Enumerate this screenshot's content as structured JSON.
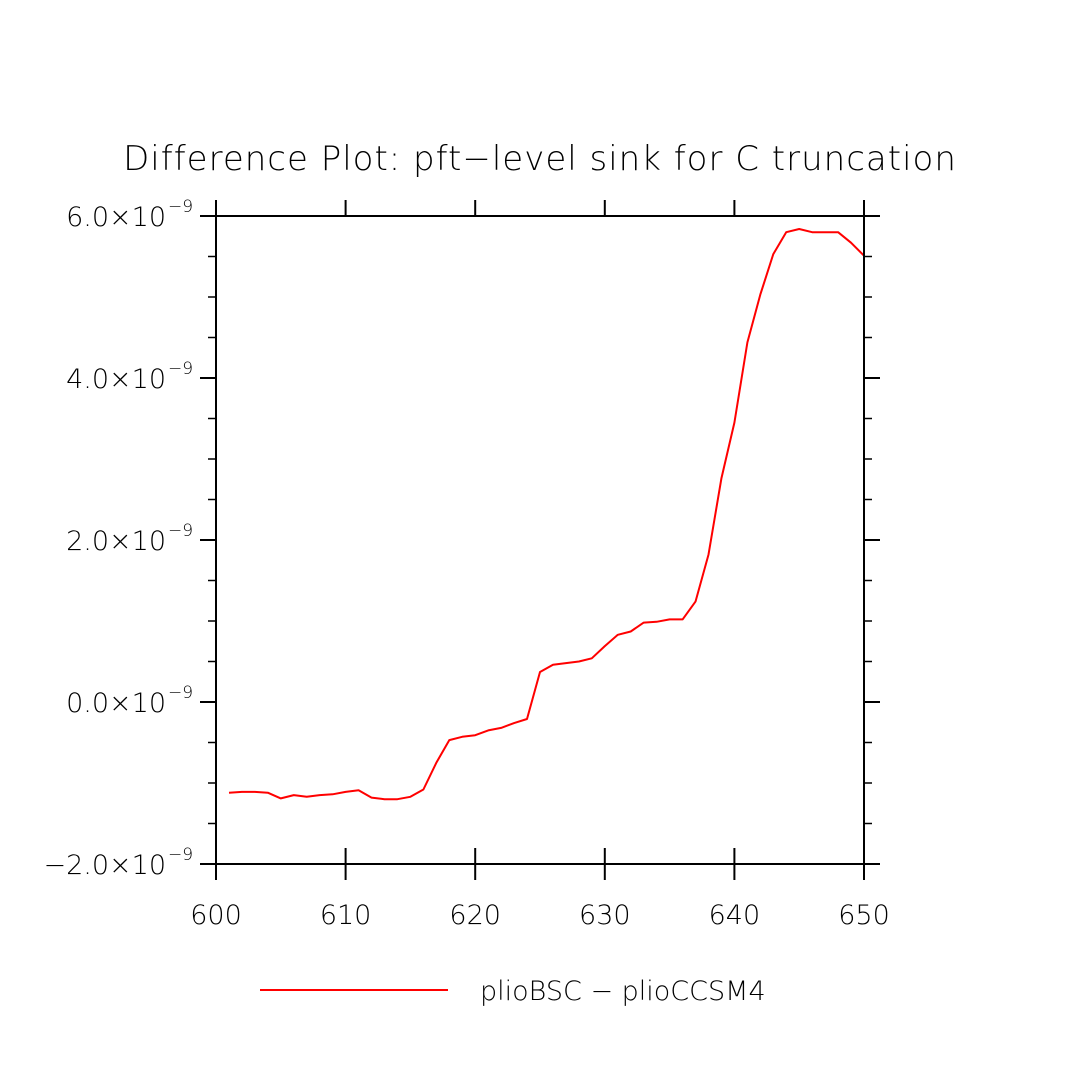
{
  "chart_data": {
    "type": "line",
    "title": "Difference Plot: pft−level sink for C truncation",
    "xlabel": "",
    "ylabel": "",
    "xlim": [
      600,
      650
    ],
    "ylim": [
      -2e-09,
      6e-09
    ],
    "grid": false,
    "legend_position": "bottom-center",
    "x_ticks": [
      600,
      610,
      620,
      630,
      640,
      650
    ],
    "x_tick_labels": [
      "600",
      "610",
      "620",
      "630",
      "640",
      "650"
    ],
    "x_minor_ticks": [],
    "y_ticks": [
      -2e-09,
      0.0,
      2e-09,
      4e-09,
      6e-09
    ],
    "y_tick_labels": [
      {
        "mantissa": "−2.0×10",
        "exponent": "−9"
      },
      {
        "mantissa": "0.0×10",
        "exponent": "−9"
      },
      {
        "mantissa": "2.0×10",
        "exponent": "−9"
      },
      {
        "mantissa": "4.0×10",
        "exponent": "−9"
      },
      {
        "mantissa": "6.0×10",
        "exponent": "−9"
      }
    ],
    "y_minor_ticks": [
      -1.5e-09,
      -1e-09,
      -5e-10,
      5e-10,
      1e-09,
      1.5e-09,
      2.5e-09,
      3e-09,
      3.5e-09,
      4.5e-09,
      5e-09,
      5.5e-09
    ],
    "series": [
      {
        "name": "plioBSC − plioCCSM4",
        "color": "#ff0000",
        "x": [
          601,
          602,
          603,
          604,
          605,
          606,
          607,
          608,
          609,
          610,
          611,
          612,
          613,
          614,
          615,
          616,
          617,
          618,
          619,
          620,
          621,
          622,
          623,
          624,
          625,
          626,
          627,
          628,
          629,
          630,
          631,
          632,
          633,
          634,
          635,
          636,
          637,
          638,
          639,
          640,
          641,
          642,
          643,
          644,
          645,
          646,
          647,
          648,
          649,
          650
        ],
        "y": [
          -1.12e-09,
          -1.11e-09,
          -1.11e-09,
          -1.12e-09,
          -1.19e-09,
          -1.15e-09,
          -1.17e-09,
          -1.15e-09,
          -1.14e-09,
          -1.11e-09,
          -1.09e-09,
          -1.18e-09,
          -1.2e-09,
          -1.2e-09,
          -1.17e-09,
          -1.08e-09,
          -7.5e-10,
          -4.7e-10,
          -4.3e-10,
          -4.1e-10,
          -3.5e-10,
          -3.2e-10,
          -2.6e-10,
          -2.1e-10,
          3.7e-10,
          4.6e-10,
          4.8e-10,
          5e-10,
          5.4e-10,
          6.9e-10,
          8.3e-10,
          8.7e-10,
          9.8e-10,
          9.9e-10,
          1.02e-09,
          1.02e-09,
          1.24e-09,
          1.82e-09,
          2.76e-09,
          3.45e-09,
          4.44e-09,
          5.03e-09,
          5.53e-09,
          5.8e-09,
          5.84e-09,
          5.8e-09,
          5.8e-09,
          5.8e-09,
          5.67e-09,
          5.51e-09
        ]
      }
    ]
  }
}
